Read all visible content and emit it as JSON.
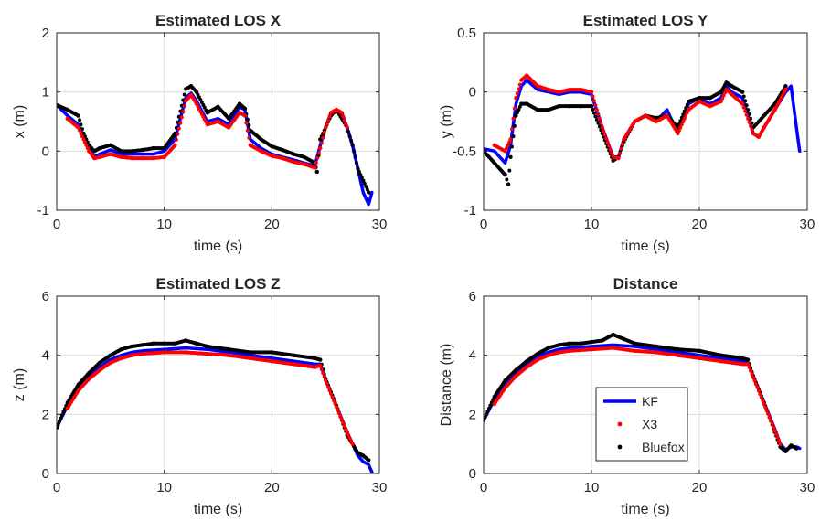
{
  "colors": {
    "KF": "#0000ff",
    "X3": "#ff0000",
    "Bluefox": "#000000",
    "grid": "#dcdcdc",
    "axis": "#262626"
  },
  "legend": {
    "placement": "inside-lower-middle of Distance panel",
    "entries": [
      "KF",
      "X3",
      "Bluefox"
    ]
  },
  "chart_data": [
    {
      "type": "line",
      "title": "Estimated LOS X",
      "xlabel": "time (s)",
      "ylabel": "x (m)",
      "xlim": [
        0,
        30
      ],
      "ylim": [
        -1,
        2
      ],
      "xticks": [
        "0",
        "10",
        "20",
        "30"
      ],
      "yticks": [
        "-1",
        "0",
        "1",
        "2"
      ],
      "grid": true,
      "series": [
        {
          "name": "KF",
          "style": "line",
          "x": [
            0,
            1,
            2,
            3,
            3.5,
            4,
            5,
            6,
            7,
            8,
            9,
            10,
            11,
            12,
            12.5,
            13,
            14,
            15,
            16,
            17,
            17.5,
            18,
            19,
            20,
            21,
            22,
            23,
            24,
            24.5,
            25,
            25.5,
            26,
            26.5,
            27,
            27.5,
            28,
            28.5,
            29,
            29.3
          ],
          "y": [
            0.78,
            0.6,
            0.45,
            0.05,
            -0.1,
            -0.05,
            0.02,
            -0.05,
            -0.05,
            -0.05,
            -0.05,
            0.0,
            0.2,
            0.9,
            0.98,
            0.85,
            0.5,
            0.55,
            0.45,
            0.75,
            0.7,
            0.2,
            0.05,
            -0.05,
            -0.1,
            -0.15,
            -0.2,
            -0.25,
            0.1,
            0.4,
            0.65,
            0.7,
            0.65,
            0.4,
            0.1,
            -0.3,
            -0.7,
            -0.9,
            -0.7
          ]
        },
        {
          "name": "X3",
          "style": "dots",
          "x": [
            1,
            2,
            3,
            3.5,
            4,
            5,
            6,
            7,
            8,
            9,
            10,
            11,
            12,
            12.5,
            13,
            14,
            15,
            16,
            17,
            17.5,
            18,
            19,
            20,
            21,
            22,
            23,
            24,
            24.5,
            25,
            25.5,
            26,
            26.5,
            27
          ],
          "y": [
            0.55,
            0.4,
            0.0,
            -0.12,
            -0.1,
            -0.05,
            -0.1,
            -0.12,
            -0.12,
            -0.12,
            -0.1,
            0.1,
            0.85,
            0.95,
            0.8,
            0.45,
            0.5,
            0.4,
            0.65,
            0.6,
            0.1,
            0.0,
            -0.08,
            -0.12,
            -0.18,
            -0.22,
            -0.28,
            0.05,
            0.4,
            0.65,
            0.7,
            0.65,
            0.4
          ]
        },
        {
          "name": "Bluefox",
          "style": "dots",
          "x": [
            0,
            1,
            2,
            2.5,
            3,
            3.5,
            4,
            5,
            6,
            7,
            8,
            9,
            10,
            11,
            12,
            12.5,
            13,
            14,
            15,
            16,
            17,
            17.5,
            18,
            19,
            20,
            21,
            22,
            23,
            24,
            24.2,
            24.5,
            25,
            25.5,
            26,
            27,
            27.5,
            28,
            28.5,
            29
          ],
          "y": [
            0.78,
            0.7,
            0.6,
            0.3,
            0.1,
            0.0,
            0.05,
            0.1,
            0.0,
            0.0,
            0.02,
            0.05,
            0.05,
            0.3,
            1.05,
            1.1,
            1.0,
            0.65,
            0.75,
            0.55,
            0.8,
            0.72,
            0.35,
            0.2,
            0.08,
            0.02,
            -0.05,
            -0.1,
            -0.2,
            -0.35,
            0.2,
            0.4,
            0.6,
            0.7,
            0.4,
            0.1,
            -0.3,
            -0.5,
            -0.7
          ]
        }
      ]
    },
    {
      "type": "line",
      "title": "Estimated LOS Y",
      "xlabel": "time (s)",
      "ylabel": "y (m)",
      "xlim": [
        0,
        30
      ],
      "ylim": [
        -1,
        0.5
      ],
      "xticks": [
        "0",
        "10",
        "20",
        "30"
      ],
      "yticks": [
        "-1",
        "-0.5",
        "0",
        "0.5"
      ],
      "grid": true,
      "series": [
        {
          "name": "KF",
          "style": "line",
          "x": [
            0,
            1,
            2,
            2.5,
            3,
            3.5,
            4,
            5,
            6,
            7,
            8,
            9,
            10,
            11,
            12,
            12.5,
            13,
            14,
            15,
            16,
            17,
            18,
            19,
            20,
            21,
            22,
            22.5,
            23,
            24,
            25,
            25.5,
            26,
            27,
            28,
            28.5,
            29,
            29.3
          ],
          "y": [
            -0.48,
            -0.5,
            -0.6,
            -0.45,
            -0.1,
            0.05,
            0.1,
            0.02,
            0.0,
            -0.02,
            0.0,
            0.0,
            -0.02,
            -0.3,
            -0.55,
            -0.55,
            -0.4,
            -0.25,
            -0.2,
            -0.25,
            -0.15,
            -0.35,
            -0.1,
            -0.05,
            -0.1,
            -0.05,
            0.05,
            0.0,
            -0.05,
            -0.35,
            -0.38,
            -0.3,
            -0.15,
            0.0,
            0.05,
            -0.3,
            -0.5
          ]
        },
        {
          "name": "X3",
          "style": "dots",
          "x": [
            1,
            2,
            2.5,
            3,
            3.5,
            4,
            5,
            6,
            7,
            8,
            9,
            10,
            11,
            12,
            12.5,
            13,
            14,
            15,
            16,
            17,
            18,
            19,
            20,
            21,
            22,
            22.5,
            23,
            24,
            25,
            25.5,
            26,
            27,
            28
          ],
          "y": [
            -0.45,
            -0.5,
            -0.4,
            -0.05,
            0.1,
            0.14,
            0.05,
            0.02,
            0.0,
            0.02,
            0.02,
            0.0,
            -0.3,
            -0.55,
            -0.56,
            -0.4,
            -0.25,
            -0.2,
            -0.25,
            -0.2,
            -0.35,
            -0.15,
            -0.08,
            -0.12,
            -0.08,
            0.02,
            -0.02,
            -0.1,
            -0.35,
            -0.38,
            -0.3,
            -0.15,
            0.02
          ]
        },
        {
          "name": "Bluefox",
          "style": "dots",
          "x": [
            0,
            1,
            2,
            2.3,
            2.5,
            3,
            3.5,
            4,
            5,
            6,
            7,
            8,
            9,
            10,
            11,
            12,
            12.5,
            13,
            14,
            15,
            16,
            17,
            18,
            19,
            20,
            21,
            22,
            22.5,
            23,
            24,
            25,
            27,
            28
          ],
          "y": [
            -0.5,
            -0.6,
            -0.7,
            -0.78,
            -0.55,
            -0.2,
            -0.1,
            -0.1,
            -0.15,
            -0.15,
            -0.12,
            -0.12,
            -0.12,
            -0.12,
            -0.35,
            -0.58,
            -0.55,
            -0.42,
            -0.25,
            -0.2,
            -0.22,
            -0.2,
            -0.3,
            -0.08,
            -0.05,
            -0.05,
            0.0,
            0.08,
            0.05,
            0.0,
            -0.3,
            -0.1,
            0.05
          ]
        }
      ]
    },
    {
      "type": "line",
      "title": "Estimated LOS Z",
      "xlabel": "time (s)",
      "ylabel": "z (m)",
      "xlim": [
        0,
        30
      ],
      "ylim": [
        0,
        6
      ],
      "xticks": [
        "0",
        "10",
        "20",
        "30"
      ],
      "yticks": [
        "0",
        "2",
        "4",
        "6"
      ],
      "grid": true,
      "series": [
        {
          "name": "KF",
          "style": "line",
          "x": [
            0,
            1,
            2,
            3,
            4,
            5,
            6,
            7,
            8,
            10,
            12,
            14,
            16,
            18,
            20,
            22,
            24,
            24.5,
            25,
            26,
            27,
            28,
            28.5,
            29,
            29.3
          ],
          "y": [
            1.55,
            2.3,
            2.9,
            3.3,
            3.6,
            3.85,
            4.0,
            4.1,
            4.15,
            4.2,
            4.25,
            4.2,
            4.1,
            4.0,
            3.9,
            3.8,
            3.7,
            3.7,
            3.2,
            2.3,
            1.4,
            0.6,
            0.4,
            0.3,
            0.05
          ]
        },
        {
          "name": "X3",
          "style": "dots",
          "x": [
            1,
            2,
            3,
            4,
            5,
            6,
            7,
            8,
            10,
            12,
            14,
            16,
            18,
            20,
            22,
            24,
            24.5,
            25,
            26,
            27,
            27.5
          ],
          "y": [
            2.2,
            2.8,
            3.2,
            3.5,
            3.75,
            3.9,
            4.0,
            4.05,
            4.1,
            4.1,
            4.05,
            4.0,
            3.9,
            3.8,
            3.7,
            3.6,
            3.65,
            3.15,
            2.25,
            1.4,
            1.0
          ]
        },
        {
          "name": "Bluefox",
          "style": "dots",
          "x": [
            0,
            1,
            2,
            3,
            4,
            5,
            6,
            7,
            8,
            9,
            10,
            11,
            12,
            13,
            14,
            16,
            18,
            20,
            22,
            24,
            24.5,
            25,
            26,
            27,
            28,
            28.5,
            29
          ],
          "y": [
            1.55,
            2.4,
            3.0,
            3.4,
            3.75,
            4.0,
            4.2,
            4.3,
            4.35,
            4.4,
            4.4,
            4.4,
            4.5,
            4.4,
            4.3,
            4.2,
            4.1,
            4.1,
            4.0,
            3.9,
            3.85,
            3.2,
            2.3,
            1.3,
            0.7,
            0.6,
            0.45
          ]
        }
      ]
    },
    {
      "type": "line",
      "title": "Distance",
      "xlabel": "time (s)",
      "ylabel": "Distance (m)",
      "xlim": [
        0,
        30
      ],
      "ylim": [
        0,
        6
      ],
      "xticks": [
        "0",
        "10",
        "20",
        "30"
      ],
      "yticks": [
        "0",
        "2",
        "4",
        "6"
      ],
      "grid": true,
      "series": [
        {
          "name": "KF",
          "style": "line",
          "x": [
            0,
            1,
            2,
            3,
            4,
            5,
            6,
            7,
            8,
            10,
            12,
            14,
            16,
            18,
            20,
            22,
            24,
            24.5,
            25,
            26,
            27,
            27.5,
            28,
            28.5,
            29,
            29.3
          ],
          "y": [
            1.8,
            2.5,
            3.0,
            3.4,
            3.7,
            3.95,
            4.1,
            4.2,
            4.25,
            4.3,
            4.35,
            4.3,
            4.2,
            4.1,
            4.0,
            3.9,
            3.8,
            3.75,
            3.3,
            2.4,
            1.5,
            1.0,
            0.8,
            0.9,
            0.9,
            0.85
          ]
        },
        {
          "name": "X3",
          "style": "dots",
          "x": [
            1,
            2,
            3,
            4,
            5,
            6,
            7,
            8,
            10,
            12,
            14,
            16,
            18,
            20,
            22,
            24,
            24.5,
            25,
            26,
            27,
            27.5
          ],
          "y": [
            2.35,
            2.9,
            3.3,
            3.6,
            3.85,
            4.0,
            4.1,
            4.15,
            4.2,
            4.25,
            4.15,
            4.1,
            4.0,
            3.9,
            3.8,
            3.7,
            3.7,
            3.25,
            2.35,
            1.45,
            1.0
          ]
        },
        {
          "name": "Bluefox",
          "style": "dots",
          "x": [
            0,
            1,
            2,
            3,
            4,
            5,
            6,
            7,
            8,
            9,
            10,
            11,
            12,
            13,
            14,
            16,
            18,
            20,
            22,
            24,
            24.5,
            25,
            26,
            27,
            27.5,
            28,
            28.5,
            29
          ],
          "y": [
            1.8,
            2.6,
            3.15,
            3.5,
            3.8,
            4.05,
            4.25,
            4.35,
            4.4,
            4.4,
            4.45,
            4.5,
            4.7,
            4.55,
            4.4,
            4.3,
            4.2,
            4.15,
            4.0,
            3.9,
            3.85,
            3.3,
            2.4,
            1.4,
            0.9,
            0.75,
            0.95,
            0.85
          ]
        }
      ]
    }
  ]
}
